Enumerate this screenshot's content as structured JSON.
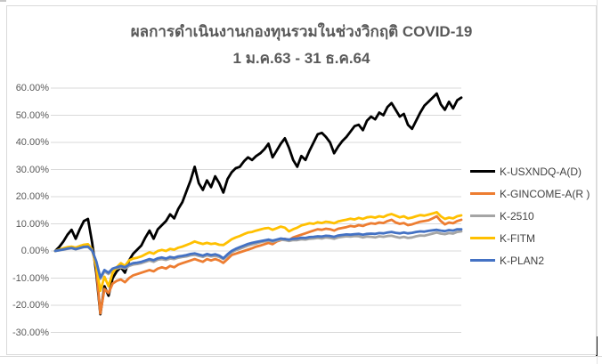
{
  "chart_data": {
    "type": "line",
    "title": "ผลการดำเนินงานกองทุนรวมในช่วงวิกฤติ COVID-19",
    "subtitle": "1 ม.ค.63 - 31 ธ.ค.64",
    "ylim": [
      -30,
      60
    ],
    "ytick_step": 10,
    "yticks": [
      "60.00%",
      "50.00%",
      "40.00%",
      "30.00%",
      "20.00%",
      "10.00%",
      "0.00%",
      "-10.00%",
      "-20.00%",
      "-30.00%"
    ],
    "grid": true,
    "gridline_color": "#D9D9D9",
    "legend_position": "right",
    "x_axis": {
      "start": "1 ม.ค.63",
      "end": "31 ธ.ค.64",
      "labels_visible": false
    },
    "series": [
      {
        "name": "K-USXNDQ-A(D)",
        "color": "#000000",
        "values": [
          0,
          1.5,
          3.5,
          6,
          7.8,
          4.5,
          8,
          11,
          11.8,
          3,
          -8,
          -23.3,
          -13,
          -16.5,
          -10,
          -7.5,
          -6,
          -8,
          -3.5,
          -1,
          0.5,
          2,
          5,
          7.5,
          4.5,
          8,
          9.5,
          11,
          13.5,
          12,
          15.5,
          18,
          22,
          26,
          31,
          25,
          22.5,
          26,
          23.5,
          27.5,
          25,
          21.5,
          26.5,
          29,
          30.5,
          31,
          33,
          34.5,
          33.5,
          35,
          36,
          37.5,
          39.5,
          34.5,
          37,
          39.5,
          41.5,
          38,
          33.5,
          31,
          35,
          33.5,
          37,
          40,
          43,
          43.5,
          42,
          40,
          36,
          38.5,
          40.5,
          42,
          44,
          46,
          46.5,
          44.5,
          48,
          49.5,
          48.5,
          51,
          50,
          53,
          54.5,
          52,
          49.5,
          50.5,
          46.5,
          45,
          48,
          51,
          53.5,
          55,
          56.5,
          58,
          54,
          52,
          55,
          52.5,
          55.5,
          56.5
        ]
      },
      {
        "name": "K-GINCOME-A(R )",
        "color": "#ED7D31",
        "values": [
          0,
          0.4,
          0.8,
          1.2,
          1.5,
          1.2,
          1.8,
          2.2,
          2.4,
          0.5,
          -6,
          -23,
          -14,
          -15.5,
          -12,
          -11,
          -10.5,
          -11.5,
          -10,
          -9,
          -8.5,
          -8,
          -7.5,
          -7,
          -7.5,
          -6.5,
          -6,
          -6.5,
          -5.5,
          -6,
          -5,
          -4.5,
          -4,
          -3.5,
          -3,
          -3.5,
          -4,
          -3,
          -3.5,
          -3,
          -3.5,
          -4.4,
          -3,
          -1.5,
          -1,
          -0.5,
          0,
          0.5,
          1,
          1.6,
          2,
          2.5,
          3,
          2.5,
          3.5,
          4,
          4.5,
          4,
          5,
          5.5,
          6,
          6.5,
          7,
          7.5,
          8,
          7.8,
          8.2,
          8,
          7.5,
          8.2,
          8.5,
          8.8,
          9.2,
          9,
          9.5,
          9.2,
          9.8,
          10.2,
          10,
          10.5,
          10.3,
          11,
          11.5,
          10.5,
          10,
          10.3,
          9.5,
          9.8,
          10.3,
          10.8,
          11,
          11.3,
          12,
          12.8,
          11,
          9.8,
          10.5,
          10.2,
          11,
          11.5
        ]
      },
      {
        "name": "K-2510",
        "color": "#A5A5A5",
        "values": [
          0,
          0.2,
          0.5,
          0.8,
          1,
          0.6,
          1,
          1.4,
          1.5,
          0,
          -4,
          -10.3,
          -7.5,
          -8.5,
          -7,
          -6.5,
          -6,
          -6.5,
          -5.5,
          -5,
          -4.8,
          -4.5,
          -4,
          -3.5,
          -4,
          -3.2,
          -3,
          -3.3,
          -2.8,
          -3,
          -2.5,
          -2.2,
          -2,
          -1.6,
          -1.4,
          -1.8,
          -2.2,
          -1.6,
          -2,
          -1.8,
          -2.2,
          -3,
          -1.8,
          -0.5,
          0.3,
          0.8,
          1.4,
          2,
          2.4,
          2.8,
          3.2,
          3.5,
          3.8,
          3.4,
          3.8,
          4.2,
          4,
          3.7,
          4,
          4,
          4.3,
          4.2,
          4.5,
          4.6,
          4.8,
          4.6,
          5,
          4.8,
          4.5,
          5,
          5.2,
          5.4,
          5.3,
          5.5,
          5.4,
          5,
          5.3,
          5.2,
          5,
          5.4,
          5.2,
          5.5,
          5.6,
          5.2,
          4.9,
          5.2,
          4.8,
          5,
          5.4,
          5.7,
          5.6,
          6,
          6.4,
          6.8,
          6.4,
          6.2,
          6.6,
          6.4,
          7,
          7.2
        ]
      },
      {
        "name": "K-FITM",
        "color": "#FFC000",
        "values": [
          0,
          0.5,
          1,
          1.4,
          1.6,
          1.2,
          1.8,
          2.3,
          2.5,
          0.5,
          -5.5,
          -14.7,
          -9.5,
          -13,
          -8,
          -6,
          -4.5,
          -5.5,
          -3.5,
          -2.8,
          -2.5,
          -2,
          -1.2,
          -0.5,
          -1,
          0,
          0.4,
          0,
          0.8,
          0.5,
          1.2,
          1.6,
          2.2,
          2.8,
          3.5,
          3,
          2.6,
          3,
          2.6,
          2.8,
          2.3,
          2.2,
          3.2,
          4.3,
          5,
          5.5,
          6.2,
          6.8,
          7,
          7.5,
          7.9,
          8.3,
          8.5,
          7.8,
          8.4,
          9,
          8.6,
          7.2,
          8,
          8.6,
          9.4,
          9.8,
          10.2,
          10,
          10.6,
          10.3,
          10.8,
          10.6,
          10.2,
          10.9,
          11.2,
          11.5,
          11.9,
          11.6,
          12.2,
          11.8,
          12.4,
          12.6,
          12.3,
          12.8,
          12.5,
          13.2,
          13.6,
          13,
          12.4,
          12.8,
          12,
          12.3,
          12.8,
          13.2,
          13,
          13.4,
          13.8,
          14.3,
          12.8,
          11.8,
          12.3,
          12,
          12.8,
          13.1
        ]
      },
      {
        "name": "K-PLAN2",
        "color": "#4472C4",
        "values": [
          0,
          0.3,
          0.6,
          0.9,
          1.1,
          0.7,
          1.1,
          1.5,
          1.6,
          0.2,
          -3.8,
          -9.8,
          -7,
          -8,
          -6.5,
          -6,
          -5.5,
          -6,
          -5,
          -4.5,
          -4.3,
          -4,
          -3.5,
          -3,
          -3.4,
          -2.7,
          -2.4,
          -2.8,
          -2.2,
          -2.5,
          -2,
          -1.8,
          -1.5,
          -1.1,
          -0.9,
          -1.3,
          -1.7,
          -1.1,
          -1.5,
          -1.2,
          -1.7,
          -2.7,
          -1.2,
          0,
          0.8,
          1.4,
          2,
          2.6,
          3,
          3.3,
          3.6,
          3.9,
          4.2,
          3.8,
          4.2,
          4.6,
          4.4,
          4.2,
          4.5,
          4.6,
          4.9,
          4.8,
          5.1,
          5.2,
          5.4,
          5.3,
          5.6,
          5.5,
          5.2,
          5.7,
          5.9,
          6.1,
          6,
          6.2,
          6.3,
          6,
          6.3,
          6.4,
          6.3,
          6.6,
          6.5,
          6.8,
          7,
          6.7,
          6.5,
          6.8,
          6.5,
          6.7,
          7,
          7.2,
          7.1,
          7.4,
          7.6,
          7.8,
          7.5,
          7.3,
          7.7,
          7.5,
          8,
          8
        ]
      }
    ]
  }
}
